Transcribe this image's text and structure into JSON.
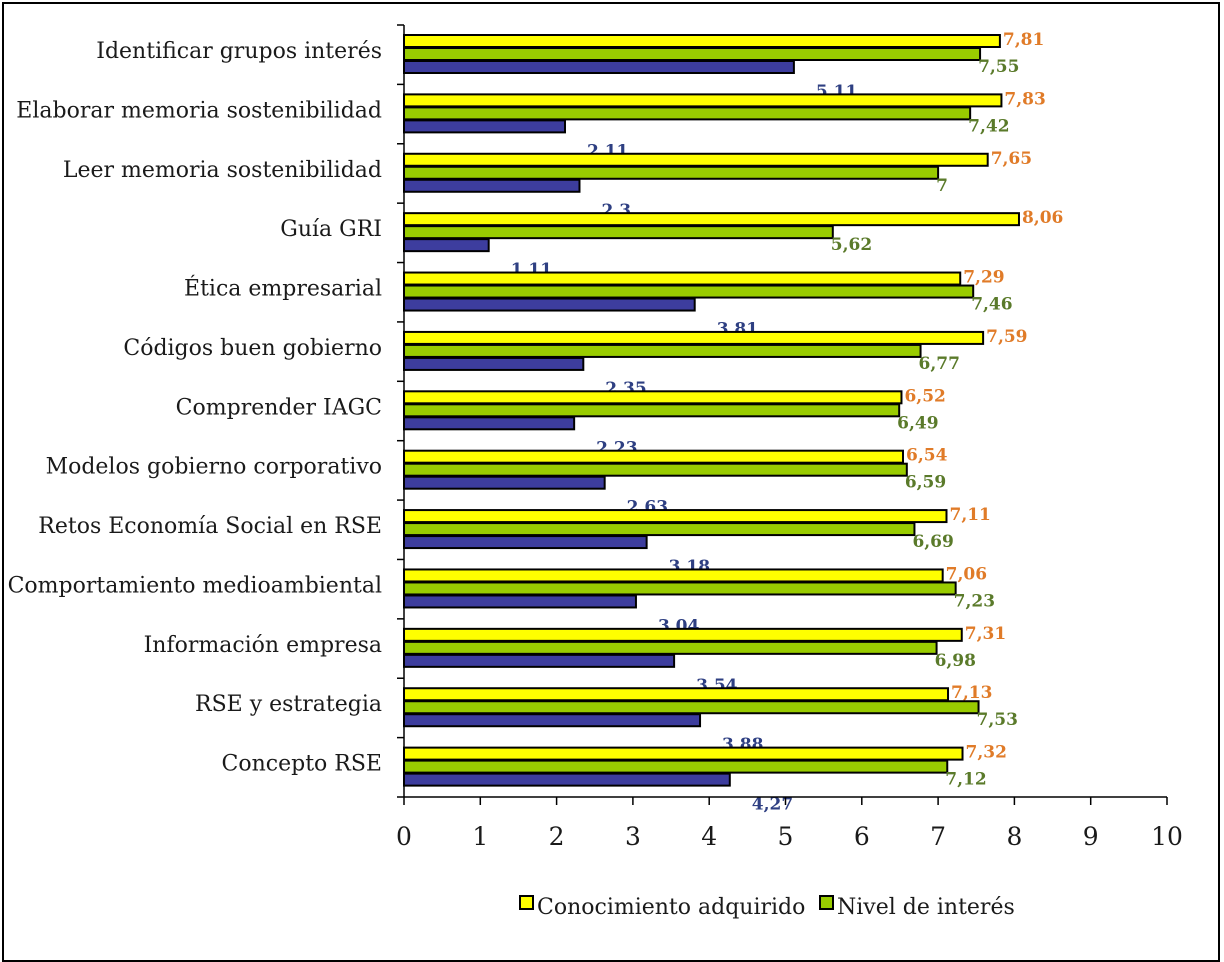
{
  "chart_data": {
    "type": "bar",
    "orientation": "horizontal",
    "categories": [
      "Identificar grupos interés",
      "Elaborar memoria sostenibilidad",
      "Leer memoria sostenibilidad",
      "Guía GRI",
      "Ética empresarial",
      "Códigos buen gobierno",
      "Comprender IAGC",
      "Modelos gobierno corporativo",
      "Retos Economía Social en RSE",
      "Comportamiento medioambiental",
      "Información empresa",
      "RSE y estrategia",
      "Concepto RSE"
    ],
    "series": [
      {
        "name": "Conocimiento adquirido",
        "color": "#ffff00",
        "label_color": "#e07b28",
        "values": [
          7.81,
          7.83,
          7.65,
          8.06,
          7.29,
          7.59,
          6.52,
          6.54,
          7.11,
          7.06,
          7.31,
          7.13,
          7.32
        ],
        "labels": [
          "7,81",
          "7,83",
          "7,65",
          "8,06",
          "7,29",
          "7,59",
          "6,52",
          "6,54",
          "7,11",
          "7,06",
          "7,31",
          "7,13",
          "7,32"
        ]
      },
      {
        "name": "Nivel de interés",
        "color": "#99cc00",
        "label_color": "#5a7a2a",
        "values": [
          7.55,
          7.42,
          7.0,
          5.62,
          7.46,
          6.77,
          6.49,
          6.59,
          6.69,
          7.23,
          6.98,
          7.53,
          7.12
        ],
        "labels": [
          "7,55",
          "7,42",
          "7",
          "5,62",
          "7,46",
          "6,77",
          "6,49",
          "6,59",
          "6,69",
          "7,23",
          "6,98",
          "7,53",
          "7,12"
        ]
      },
      {
        "name": "",
        "color": "#3d3d9e",
        "label_color": "#2e3f82",
        "values": [
          5.11,
          2.11,
          2.3,
          1.11,
          3.81,
          2.35,
          2.23,
          2.63,
          3.18,
          3.04,
          3.54,
          3.88,
          4.27
        ],
        "labels": [
          "5,11",
          "2,11",
          "2,3",
          "1,11",
          "3,81",
          "2,35",
          "2,23",
          "2,63",
          "3,18",
          "3,04",
          "3,54",
          "3,88",
          "4,27"
        ]
      }
    ],
    "x_ticks": [
      "0",
      "1",
      "2",
      "3",
      "4",
      "5",
      "6",
      "7",
      "8",
      "9",
      "10"
    ],
    "xlim": [
      0,
      10
    ],
    "title": "",
    "xlabel": "",
    "ylabel": "",
    "grid": false,
    "legend_position": "bottom"
  }
}
